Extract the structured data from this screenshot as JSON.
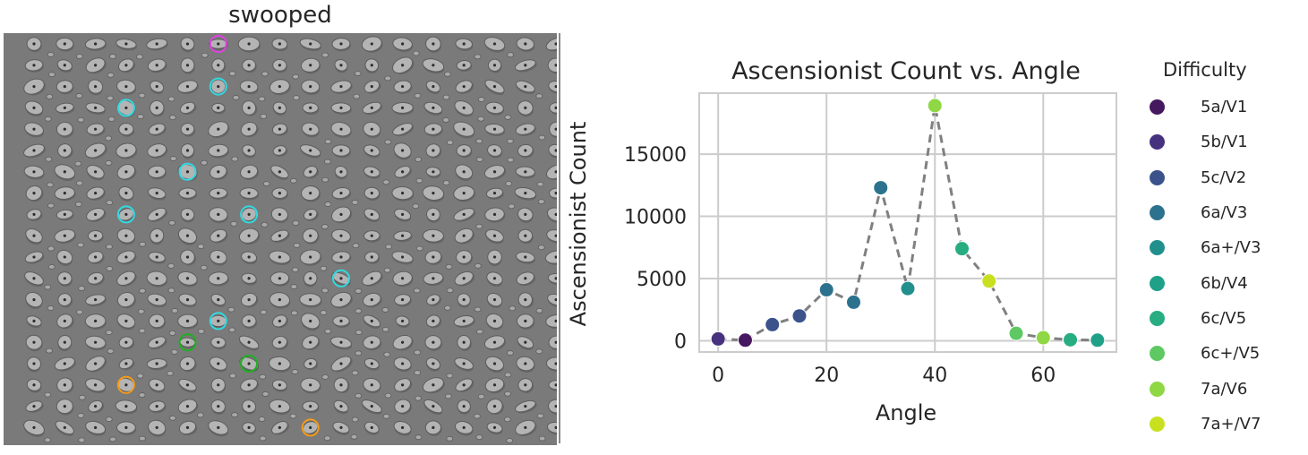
{
  "board": {
    "title": "swooped",
    "hold_grid": {
      "cols": 18,
      "rows": 19
    },
    "circled_holds": [
      {
        "col": 6,
        "row": 0,
        "color": "#e040e0",
        "role": "finish"
      },
      {
        "col": 6,
        "row": 2,
        "color": "#33d9e0",
        "role": "hand"
      },
      {
        "col": 3,
        "row": 3,
        "color": "#33d9e0",
        "role": "hand"
      },
      {
        "col": 5,
        "row": 6,
        "color": "#33d9e0",
        "role": "hand"
      },
      {
        "col": 3,
        "row": 8,
        "color": "#33d9e0",
        "role": "hand"
      },
      {
        "col": 7,
        "row": 8,
        "color": "#33d9e0",
        "role": "hand"
      },
      {
        "col": 10,
        "row": 11,
        "color": "#33d9e0",
        "role": "hand"
      },
      {
        "col": 6,
        "row": 13,
        "color": "#33d9e0",
        "role": "hand"
      },
      {
        "col": 5,
        "row": 14,
        "color": "#1fb01f",
        "role": "start"
      },
      {
        "col": 7,
        "row": 15,
        "color": "#1fb01f",
        "role": "start"
      },
      {
        "col": 3,
        "row": 16,
        "color": "#f59b1a",
        "role": "foot"
      },
      {
        "col": 9,
        "row": 18,
        "color": "#f59b1a",
        "role": "foot"
      }
    ]
  },
  "chart_data": {
    "type": "scatter",
    "title": "Ascensionist Count vs. Angle",
    "xlabel": "Angle",
    "ylabel": "Ascensionist Count",
    "xlim": [
      -3.5,
      73.5
    ],
    "ylim": [
      -900,
      19900
    ],
    "xticks": [
      0,
      20,
      40,
      60
    ],
    "yticks": [
      0,
      5000,
      10000,
      15000
    ],
    "grid": true,
    "connector": {
      "style": "dashed",
      "color": "#808080"
    },
    "points": [
      {
        "x": 0,
        "y": 150,
        "difficulty": "5b/V1"
      },
      {
        "x": 5,
        "y": 50,
        "difficulty": "5a/V1"
      },
      {
        "x": 10,
        "y": 1300,
        "difficulty": "5c/V2"
      },
      {
        "x": 15,
        "y": 2000,
        "difficulty": "5c/V2"
      },
      {
        "x": 20,
        "y": 4100,
        "difficulty": "6a/V3"
      },
      {
        "x": 25,
        "y": 3100,
        "difficulty": "6a/V3"
      },
      {
        "x": 30,
        "y": 12300,
        "difficulty": "6a/V3"
      },
      {
        "x": 35,
        "y": 4200,
        "difficulty": "6a+/V3"
      },
      {
        "x": 40,
        "y": 18900,
        "difficulty": "7a/V6"
      },
      {
        "x": 45,
        "y": 7400,
        "difficulty": "6c/V5"
      },
      {
        "x": 50,
        "y": 4800,
        "difficulty": "7a+/V7"
      },
      {
        "x": 55,
        "y": 600,
        "difficulty": "6c+/V5"
      },
      {
        "x": 60,
        "y": 250,
        "difficulty": "7a/V6"
      },
      {
        "x": 65,
        "y": 80,
        "difficulty": "6c/V5"
      },
      {
        "x": 70,
        "y": 50,
        "difficulty": "6b/V4"
      }
    ],
    "legend": {
      "title": "Difficulty",
      "placement": "right",
      "items": [
        {
          "label": "5a/V1",
          "color": "#46185f"
        },
        {
          "label": "5b/V1",
          "color": "#46327e"
        },
        {
          "label": "5c/V2",
          "color": "#3b528b"
        },
        {
          "label": "6a/V3",
          "color": "#2c728e"
        },
        {
          "label": "6a+/V3",
          "color": "#21908d"
        },
        {
          "label": "6b/V4",
          "color": "#1fa188"
        },
        {
          "label": "6c/V5",
          "color": "#27ad81"
        },
        {
          "label": "6c+/V5",
          "color": "#5ec962"
        },
        {
          "label": "7a/V6",
          "color": "#8fd744"
        },
        {
          "label": "7a+/V7",
          "color": "#c8e020"
        }
      ]
    }
  }
}
